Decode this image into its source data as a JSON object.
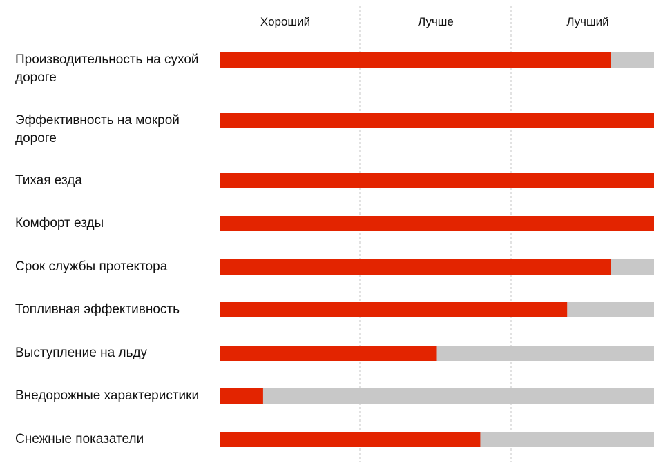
{
  "chart_data": {
    "type": "bar",
    "orientation": "horizontal",
    "scale_labels": [
      "Хороший",
      "Лучше",
      "Лучший"
    ],
    "xlim": [
      0,
      100
    ],
    "categories": [
      "Производительность на сухой дороге",
      "Эффективность на мокрой дороге",
      "Тихая езда",
      "Комфорт езды",
      "Срок службы протектора",
      "Топливная эффективность",
      "Выступление на льду",
      "Внедорожные характеристики",
      "Снежные показатели"
    ],
    "values": [
      90,
      100,
      100,
      100,
      90,
      80,
      50,
      10,
      60
    ],
    "colors": {
      "bar": "#e32400",
      "track": "#c8c8c8",
      "divider": "#c4c4c4"
    }
  }
}
